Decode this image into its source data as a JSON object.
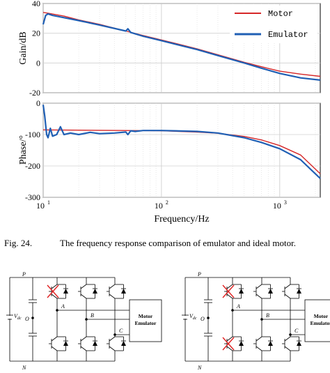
{
  "chart_data": [
    {
      "type": "line",
      "xscale": "log",
      "xlim": [
        10,
        2200
      ],
      "ylim": [
        -20,
        40
      ],
      "ylabel": "Gain/dB",
      "xlabel": "",
      "yticks": [
        "40",
        "20",
        "0",
        "-20"
      ],
      "legend_position": "top-right",
      "grid": true,
      "series": [
        {
          "name": "Motor",
          "color": "#d62728",
          "x": [
            10,
            11,
            15,
            20,
            30,
            50,
            70,
            100,
            150,
            200,
            300,
            500,
            700,
            1000,
            1500,
            2200
          ],
          "y": [
            34,
            33.5,
            31.5,
            29,
            26,
            21.5,
            18.5,
            15.5,
            12,
            9.5,
            5.5,
            0.5,
            -2.5,
            -5.5,
            -7.5,
            -9
          ]
        },
        {
          "name": "Emulator",
          "color": "#1f5fb4",
          "x": [
            10,
            10.5,
            11,
            12,
            15,
            20,
            30,
            50,
            52,
            55,
            70,
            100,
            150,
            200,
            300,
            500,
            700,
            1000,
            1500,
            2200
          ],
          "y": [
            26,
            32,
            33,
            32,
            30.5,
            28.5,
            25.5,
            21.5,
            23,
            20.5,
            18,
            15,
            11.5,
            9,
            5,
            0,
            -3.5,
            -7,
            -10,
            -11.5
          ]
        }
      ]
    },
    {
      "type": "line",
      "xscale": "log",
      "xlim": [
        10,
        2200
      ],
      "ylim": [
        -300,
        0
      ],
      "ylabel": "Phase/°",
      "xlabel": "Frequency/Hz",
      "yticks": [
        "0",
        "-100",
        "-200",
        "-300"
      ],
      "xticks": [
        {
          "base": "10",
          "exp": "1"
        },
        {
          "base": "10",
          "exp": "2"
        },
        {
          "base": "10",
          "exp": "3"
        }
      ],
      "grid": true,
      "series": [
        {
          "name": "Motor",
          "color": "#d62728",
          "x": [
            10,
            20,
            50,
            100,
            200,
            300,
            500,
            700,
            1000,
            1500,
            2200
          ],
          "y": [
            -85,
            -86,
            -87,
            -88,
            -92,
            -96,
            -106,
            -117,
            -135,
            -165,
            -225
          ]
        },
        {
          "name": "Emulator",
          "color": "#1f5fb4",
          "x": [
            10,
            10.3,
            10.7,
            11,
            11.5,
            12,
            13,
            14,
            15,
            17,
            20,
            25,
            30,
            40,
            50,
            52,
            55,
            60,
            70,
            100,
            200,
            300,
            500,
            700,
            1000,
            1500,
            2200
          ],
          "y": [
            -5,
            -40,
            -100,
            -110,
            -80,
            -105,
            -100,
            -75,
            -100,
            -95,
            -100,
            -93,
            -97,
            -95,
            -92,
            -100,
            -88,
            -90,
            -87,
            -87,
            -90,
            -95,
            -110,
            -125,
            -145,
            -180,
            -240
          ]
        }
      ]
    }
  ],
  "caption": {
    "label": "Fig. 24.",
    "text": "The frequency response comparison of emulator and ideal motor."
  },
  "circuits": [
    {
      "P": "P",
      "N": "N",
      "O": "O",
      "Vdc": "V",
      "Vdc_sub": "dc",
      "A": "A",
      "B": "B",
      "C": "C",
      "box_line1": "Motor",
      "box_line2": "Emulator"
    },
    {
      "P": "P",
      "N": "N",
      "O": "O",
      "Vdc": "V",
      "Vdc_sub": "dc",
      "A": "A",
      "B": "B",
      "C": "C",
      "box_line1": "Motor",
      "box_line2": "Emulator"
    }
  ]
}
